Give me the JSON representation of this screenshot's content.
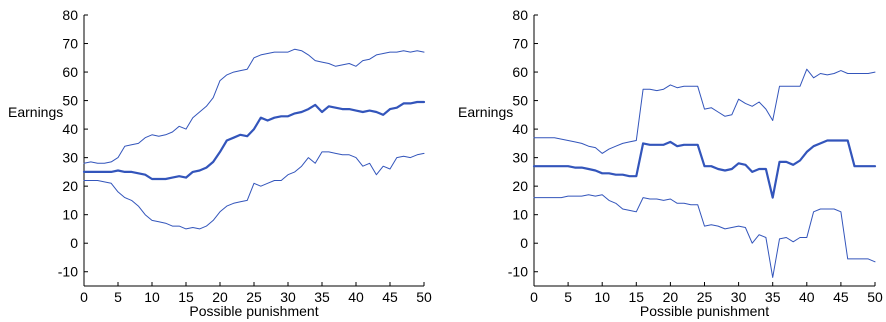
{
  "colors": {
    "series": "#3355bb",
    "axis": "#000000"
  },
  "chart_data": [
    {
      "type": "line",
      "xlabel": "Possible punishment",
      "ylabel": "Earnings",
      "xlim": [
        0,
        50
      ],
      "ylim": [
        -15,
        80
      ],
      "xticks": [
        0,
        5,
        10,
        15,
        20,
        25,
        30,
        35,
        40,
        45,
        50
      ],
      "yticks": [
        -10,
        0,
        10,
        20,
        30,
        40,
        50,
        60,
        70,
        80
      ],
      "grid": false,
      "series": [
        {
          "role": "upper",
          "width": 1,
          "x": [
            0,
            1,
            2,
            3,
            4,
            5,
            6,
            7,
            8,
            9,
            10,
            11,
            12,
            13,
            14,
            15,
            16,
            17,
            18,
            19,
            20,
            21,
            22,
            23,
            24,
            25,
            26,
            27,
            28,
            29,
            30,
            31,
            32,
            33,
            34,
            35,
            36,
            37,
            38,
            39,
            40,
            41,
            42,
            43,
            44,
            45,
            46,
            47,
            48,
            49,
            50
          ],
          "y": [
            28,
            28.5,
            28,
            28,
            28.5,
            30,
            34,
            34.5,
            35,
            37,
            38,
            37.5,
            38,
            39,
            41,
            40,
            44,
            46,
            48,
            51,
            57,
            59,
            60,
            60.5,
            61,
            65,
            66,
            66.5,
            67,
            67,
            67,
            68,
            67.5,
            66,
            64,
            63.5,
            63,
            62,
            62.5,
            63,
            62,
            64,
            64.5,
            66,
            66.5,
            67,
            67,
            67.5,
            67,
            67.5,
            67
          ]
        },
        {
          "role": "mean",
          "width": 2.2,
          "x": [
            0,
            1,
            2,
            3,
            4,
            5,
            6,
            7,
            8,
            9,
            10,
            11,
            12,
            13,
            14,
            15,
            16,
            17,
            18,
            19,
            20,
            21,
            22,
            23,
            24,
            25,
            26,
            27,
            28,
            29,
            30,
            31,
            32,
            33,
            34,
            35,
            36,
            37,
            38,
            39,
            40,
            41,
            42,
            43,
            44,
            45,
            46,
            47,
            48,
            49,
            50
          ],
          "y": [
            25,
            25,
            25,
            25,
            25,
            25.5,
            25,
            25,
            24.5,
            24,
            22.5,
            22.5,
            22.5,
            23,
            23.5,
            23,
            25,
            25.5,
            26.5,
            28.5,
            32,
            36,
            37,
            38,
            37.5,
            40,
            44,
            43,
            44,
            44.5,
            44.5,
            45.5,
            46,
            47,
            48.5,
            46,
            48,
            47.5,
            47,
            47,
            46.5,
            46,
            46.5,
            46,
            45,
            47,
            47.5,
            49,
            49,
            49.5,
            49.5
          ]
        },
        {
          "role": "lower",
          "width": 1,
          "x": [
            0,
            1,
            2,
            3,
            4,
            5,
            6,
            7,
            8,
            9,
            10,
            11,
            12,
            13,
            14,
            15,
            16,
            17,
            18,
            19,
            20,
            21,
            22,
            23,
            24,
            25,
            26,
            27,
            28,
            29,
            30,
            31,
            32,
            33,
            34,
            35,
            36,
            37,
            38,
            39,
            40,
            41,
            42,
            43,
            44,
            45,
            46,
            47,
            48,
            49,
            50
          ],
          "y": [
            22,
            22,
            22,
            21.5,
            21,
            18,
            16,
            15,
            13,
            10,
            8,
            7.5,
            7,
            6,
            6,
            5,
            5.5,
            5,
            6,
            8,
            11,
            13,
            14,
            14.5,
            15,
            21,
            20,
            21,
            22,
            22,
            24,
            25,
            27,
            30,
            28,
            32,
            32,
            31.5,
            31,
            31,
            30,
            27,
            28,
            24,
            27,
            26,
            30,
            30.5,
            30,
            31,
            31.5
          ]
        }
      ]
    },
    {
      "type": "line",
      "xlabel": "Possible punishment",
      "ylabel": "Earnings",
      "xlim": [
        0,
        50
      ],
      "ylim": [
        -15,
        80
      ],
      "xticks": [
        0,
        5,
        10,
        15,
        20,
        25,
        30,
        35,
        40,
        45,
        50
      ],
      "yticks": [
        -10,
        0,
        10,
        20,
        30,
        40,
        50,
        60,
        70,
        80
      ],
      "grid": false,
      "series": [
        {
          "role": "upper",
          "width": 1,
          "x": [
            0,
            1,
            2,
            3,
            4,
            5,
            6,
            7,
            8,
            9,
            10,
            11,
            12,
            13,
            14,
            15,
            16,
            17,
            18,
            19,
            20,
            21,
            22,
            23,
            24,
            25,
            26,
            27,
            28,
            29,
            30,
            31,
            32,
            33,
            34,
            35,
            36,
            37,
            38,
            39,
            40,
            41,
            42,
            43,
            44,
            45,
            46,
            47,
            48,
            49,
            50
          ],
          "y": [
            37,
            37,
            37,
            37,
            36.5,
            36,
            35.5,
            35,
            34,
            33.5,
            31.5,
            33,
            34,
            35,
            35.5,
            36,
            54,
            54,
            53.5,
            54,
            55.5,
            54.5,
            55,
            55,
            55,
            47,
            47.5,
            46,
            44.5,
            45,
            50.5,
            49,
            48,
            49.5,
            47,
            43,
            55,
            55,
            55,
            55,
            61,
            58,
            59.5,
            59,
            59.5,
            60.5,
            59.5,
            59.5,
            59.5,
            59.5,
            60
          ]
        },
        {
          "role": "mean",
          "width": 2.2,
          "x": [
            0,
            1,
            2,
            3,
            4,
            5,
            6,
            7,
            8,
            9,
            10,
            11,
            12,
            13,
            14,
            15,
            16,
            17,
            18,
            19,
            20,
            21,
            22,
            23,
            24,
            25,
            26,
            27,
            28,
            29,
            30,
            31,
            32,
            33,
            34,
            35,
            36,
            37,
            38,
            39,
            40,
            41,
            42,
            43,
            44,
            45,
            46,
            47,
            48,
            49,
            50
          ],
          "y": [
            27,
            27,
            27,
            27,
            27,
            27,
            26.5,
            26.5,
            26,
            25.5,
            24.5,
            24.5,
            24,
            24,
            23.5,
            23.5,
            35,
            34.5,
            34.5,
            34.5,
            35.5,
            34,
            34.5,
            34.5,
            34.5,
            27,
            27,
            26,
            25.5,
            26,
            28,
            27.5,
            25,
            26,
            26,
            16,
            28.5,
            28.5,
            27.5,
            29,
            32,
            34,
            35,
            36,
            36,
            36,
            36,
            27,
            27,
            27,
            27
          ]
        },
        {
          "role": "lower",
          "width": 1,
          "x": [
            0,
            1,
            2,
            3,
            4,
            5,
            6,
            7,
            8,
            9,
            10,
            11,
            12,
            13,
            14,
            15,
            16,
            17,
            18,
            19,
            20,
            21,
            22,
            23,
            24,
            25,
            26,
            27,
            28,
            29,
            30,
            31,
            32,
            33,
            34,
            35,
            36,
            37,
            38,
            39,
            40,
            41,
            42,
            43,
            44,
            45,
            46,
            47,
            48,
            49,
            50
          ],
          "y": [
            16,
            16,
            16,
            16,
            16,
            16.5,
            16.5,
            16.5,
            17,
            16.5,
            17,
            15,
            14,
            12,
            11.5,
            11,
            16,
            15.5,
            15.5,
            15,
            15.5,
            14,
            14,
            13.5,
            13.5,
            6,
            6.5,
            6,
            5,
            5.5,
            6,
            5.5,
            0,
            3,
            2,
            -12,
            1.5,
            2,
            0.5,
            2,
            2,
            11,
            12,
            12,
            12,
            11,
            -5.5,
            -5.5,
            -5.5,
            -5.5,
            -6.5
          ]
        }
      ]
    }
  ]
}
